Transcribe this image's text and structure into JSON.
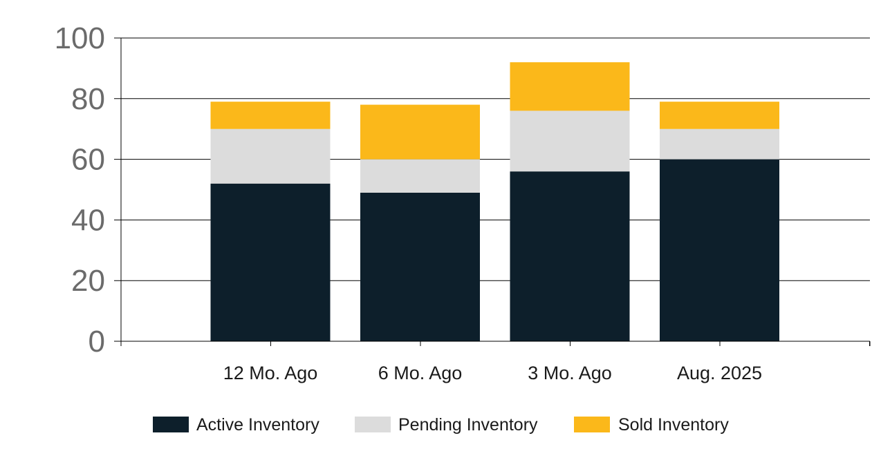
{
  "chart_data": {
    "type": "bar",
    "stacked": true,
    "categories": [
      "12 Mo. Ago",
      "6 Mo. Ago",
      "3 Mo. Ago",
      "Aug. 2025"
    ],
    "series": [
      {
        "name": "Active Inventory",
        "color": "#0d1f2b",
        "values": [
          52,
          49,
          56,
          60
        ]
      },
      {
        "name": "Pending Inventory",
        "color": "#dcdcdc",
        "values": [
          18,
          11,
          20,
          10
        ]
      },
      {
        "name": "Sold Inventory",
        "color": "#fbb81a",
        "values": [
          9,
          18,
          16,
          9
        ]
      }
    ],
    "yticks": [
      0,
      20,
      40,
      60,
      80,
      100
    ],
    "ylim": [
      0,
      100
    ],
    "grid": true,
    "legend": "bottom",
    "title": "",
    "xlabel": "",
    "ylabel": ""
  }
}
